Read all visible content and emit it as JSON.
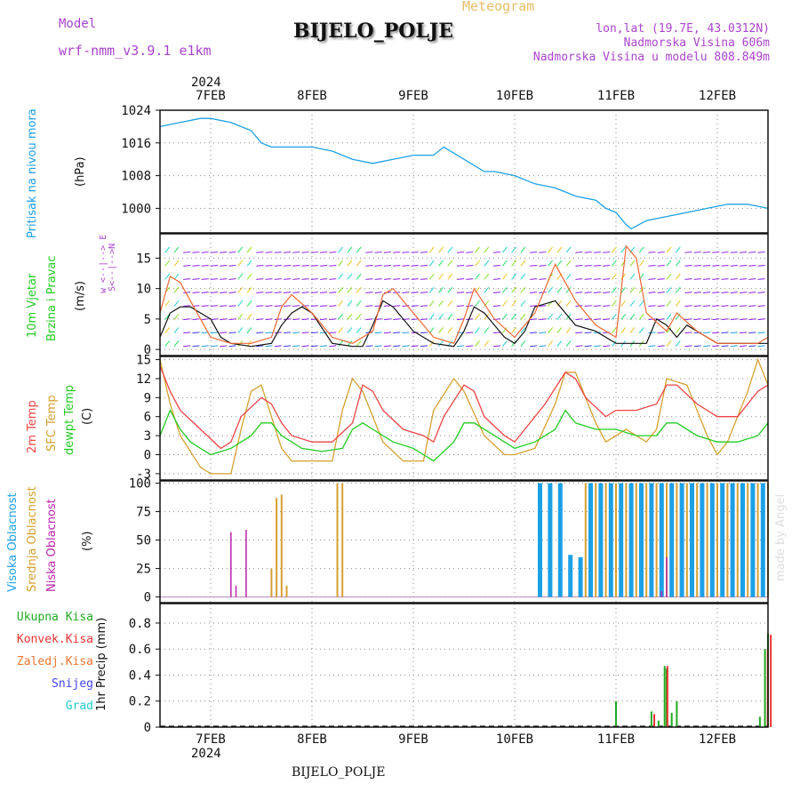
{
  "header": {
    "model_label": "Model",
    "model_name": "wrf-nmm_v3.9.1 e1km",
    "title": "BIJELO_POLJE",
    "product": "Meteogram",
    "lonlat": "lon,lat (19.7E, 43.0312N)",
    "elevation": "Nadmorska Visina 606m",
    "model_elevation": "Nadmorska Visina u modelu 808.849m",
    "year": "2024",
    "footer_station": "BIJELO_POLJE",
    "watermark": "made by Angel"
  },
  "colors": {
    "pressure": "#1ca0e6",
    "wind_label": "#22cc22",
    "temp2m": "#ee4444",
    "sfc": "#d6a030",
    "dewpt": "#22cc22",
    "high_cloud": "#1ca0e6",
    "mid_cloud": "#d6a030",
    "low_cloud": "#bb22aa",
    "total_precip": "#22aa22",
    "conv_precip": "#ee3333",
    "frozen_precip": "#ee7733",
    "snow": "#4444ee",
    "hail": "#22cccc",
    "meta": "#aa44cc"
  },
  "panel_labels": {
    "pressure": {
      "name": "Pritisak na nivou mora",
      "unit": "(hPa)"
    },
    "wind": {
      "line1": "10m Vjetar",
      "line2": "Brzina i Pravac",
      "unit": "(m/s)",
      "compass": "w <--|--> E",
      "compass2": "S<--|-->N"
    },
    "temp": {
      "t2m": "2m Temp",
      "sfc": "SFC Temp",
      "dew": "dewpt Temp",
      "unit": "(C)"
    },
    "cloud": {
      "high": "Visoka Oblacnost",
      "mid": "Srednja Oblacnost",
      "low": "Niska Oblacnost",
      "unit": "(%)"
    },
    "precip": {
      "unit": "1hr Precip (mm)",
      "legend": [
        "Ukupna Kisa",
        "Konvek.Kisa",
        "Zaledj.Kisa",
        "Snijeg",
        "Grad"
      ]
    }
  },
  "chart_data": [
    {
      "type": "line",
      "panel": "pressure",
      "x_ticks": [
        "7FEB",
        "8FEB",
        "9FEB",
        "10FEB",
        "11FEB",
        "12FEB"
      ],
      "x_days": [
        0,
        1,
        2,
        3,
        4,
        5
      ],
      "xlim": [
        -0.5,
        5.5
      ],
      "yticks": [
        1000,
        1008,
        1016,
        1024
      ],
      "ylim": [
        994,
        1024
      ],
      "grid": true,
      "series": [
        {
          "name": "Pritisak na nivou mora",
          "x": [
            -0.5,
            -0.3,
            -0.1,
            0.0,
            0.2,
            0.4,
            0.5,
            0.6,
            0.8,
            1.0,
            1.2,
            1.4,
            1.6,
            1.8,
            2.0,
            2.2,
            2.3,
            2.5,
            2.7,
            2.8,
            3.0,
            3.2,
            3.4,
            3.6,
            3.8,
            3.9,
            4.0,
            4.1,
            4.15,
            4.3,
            4.5,
            4.7,
            4.9,
            5.1,
            5.3,
            5.5
          ],
          "y": [
            1020,
            1021,
            1022,
            1022,
            1021,
            1019,
            1016,
            1015,
            1015,
            1015,
            1014,
            1012,
            1011,
            1012,
            1013,
            1013,
            1015,
            1012,
            1009,
            1009,
            1008,
            1006,
            1005,
            1003,
            1002,
            1000,
            999,
            996,
            995,
            997,
            998,
            999,
            1000,
            1001,
            1001,
            1000
          ]
        }
      ]
    },
    {
      "type": "line",
      "panel": "wind",
      "xlim": [
        -0.5,
        5.5
      ],
      "yticks": [
        0,
        5,
        10,
        15
      ],
      "ylim": [
        -1,
        19
      ],
      "grid": true,
      "series": [
        {
          "name": "speed",
          "x": [
            -0.5,
            -0.4,
            -0.3,
            -0.2,
            -0.1,
            0.0,
            0.1,
            0.2,
            0.4,
            0.6,
            0.7,
            0.8,
            0.9,
            1.0,
            1.2,
            1.4,
            1.5,
            1.6,
            1.7,
            1.8,
            1.9,
            2.0,
            2.2,
            2.4,
            2.5,
            2.6,
            2.7,
            2.8,
            2.9,
            3.0,
            3.1,
            3.2,
            3.4,
            3.5,
            3.6,
            3.8,
            4.0,
            4.1,
            4.2,
            4.3,
            4.4,
            4.5,
            4.6,
            4.7,
            4.8,
            5.0,
            5.2,
            5.4,
            5.5
          ],
          "y": [
            2,
            6,
            7,
            7,
            6,
            5,
            2,
            1,
            0.5,
            1,
            4,
            6,
            7,
            6,
            1,
            0.5,
            0.5,
            4,
            8,
            7,
            5,
            3,
            1,
            0.5,
            3,
            7,
            6,
            4,
            2,
            1,
            3,
            7,
            8,
            6,
            4,
            3,
            1,
            1,
            1,
            1,
            5,
            4,
            2,
            4,
            3,
            1,
            1,
            1,
            1
          ]
        },
        {
          "name": "gust",
          "x": [
            -0.5,
            -0.4,
            -0.3,
            -0.2,
            -0.1,
            0.0,
            0.2,
            0.4,
            0.6,
            0.7,
            0.8,
            1.0,
            1.2,
            1.4,
            1.6,
            1.7,
            1.8,
            2.0,
            2.2,
            2.4,
            2.5,
            2.6,
            2.8,
            3.0,
            3.2,
            3.4,
            3.6,
            3.8,
            4.0,
            4.1,
            4.2,
            4.3,
            4.5,
            4.6,
            4.8,
            5.0,
            5.2,
            5.4,
            5.5
          ],
          "y": [
            6,
            12,
            11,
            8,
            5,
            2,
            1,
            1,
            2,
            7,
            9,
            6,
            2,
            1,
            3,
            9,
            10,
            6,
            2,
            1,
            5,
            10,
            5,
            2,
            6,
            14,
            8,
            4,
            2,
            17,
            15,
            6,
            3,
            6,
            3,
            1,
            1,
            1,
            2
          ]
        }
      ]
    },
    {
      "type": "line",
      "panel": "temperature",
      "xlim": [
        -0.5,
        5.5
      ],
      "yticks": [
        -3,
        0,
        3,
        6,
        9,
        12,
        15
      ],
      "ylim": [
        -4,
        15.5
      ],
      "grid": true,
      "series": [
        {
          "name": "2m Temp",
          "x": [
            -0.5,
            -0.4,
            -0.3,
            -0.1,
            0.1,
            0.2,
            0.3,
            0.5,
            0.6,
            0.7,
            0.8,
            1.0,
            1.2,
            1.4,
            1.5,
            1.6,
            1.7,
            1.9,
            2.1,
            2.2,
            2.3,
            2.5,
            2.6,
            2.7,
            2.9,
            3.0,
            3.1,
            3.3,
            3.5,
            3.6,
            3.7,
            3.9,
            4.0,
            4.2,
            4.4,
            4.5,
            4.6,
            4.8,
            5.0,
            5.2,
            5.4,
            5.5
          ],
          "y": [
            14,
            10,
            7,
            4,
            1,
            2,
            6,
            9,
            8,
            5,
            3,
            2,
            2,
            5,
            11,
            10,
            7,
            4,
            3,
            2,
            6,
            11,
            10,
            6,
            3,
            2,
            4,
            8,
            13,
            12,
            9,
            6,
            7,
            7,
            8,
            11,
            11,
            8,
            6,
            6,
            10,
            11
          ]
        },
        {
          "name": "SFC Temp",
          "x": [
            -0.5,
            -0.4,
            -0.3,
            -0.1,
            0.0,
            0.2,
            0.3,
            0.4,
            0.5,
            0.6,
            0.7,
            0.8,
            1.0,
            1.2,
            1.3,
            1.4,
            1.5,
            1.7,
            1.9,
            2.1,
            2.2,
            2.4,
            2.5,
            2.7,
            2.9,
            3.0,
            3.2,
            3.4,
            3.5,
            3.6,
            3.8,
            3.9,
            4.1,
            4.3,
            4.4,
            4.5,
            4.7,
            4.9,
            5.0,
            5.1,
            5.3,
            5.4,
            5.5
          ],
          "y": [
            15,
            8,
            3,
            -2,
            -3,
            -3,
            4,
            10,
            11,
            6,
            1,
            -1,
            -1,
            -1,
            7,
            12,
            10,
            2,
            -1,
            -1,
            7,
            12,
            10,
            3,
            0,
            0,
            1,
            8,
            13,
            13,
            5,
            2,
            4,
            2,
            4,
            12,
            11,
            3,
            0,
            2,
            10,
            15,
            11
          ]
        },
        {
          "name": "dewpt Temp",
          "x": [
            -0.5,
            -0.4,
            -0.3,
            -0.2,
            -0.1,
            0.0,
            0.2,
            0.4,
            0.5,
            0.6,
            0.7,
            0.9,
            1.1,
            1.3,
            1.4,
            1.5,
            1.6,
            1.8,
            2.0,
            2.2,
            2.4,
            2.5,
            2.6,
            2.8,
            3.0,
            3.2,
            3.4,
            3.5,
            3.6,
            3.8,
            4.0,
            4.2,
            4.4,
            4.5,
            4.6,
            4.8,
            5.0,
            5.2,
            5.4,
            5.5
          ],
          "y": [
            3,
            7,
            4,
            2,
            1,
            0,
            1,
            3,
            5,
            5,
            3,
            1,
            0.5,
            1,
            4,
            5,
            4,
            2,
            1,
            -1,
            2,
            5,
            5,
            3,
            1,
            2,
            4,
            7,
            5,
            4,
            4,
            3,
            3,
            5,
            5,
            3,
            2,
            2,
            3,
            5
          ]
        }
      ]
    },
    {
      "type": "bar",
      "panel": "cloud",
      "xlim": [
        -0.5,
        5.5
      ],
      "yticks": [
        0,
        25,
        50,
        75,
        100
      ],
      "ylim": [
        -5,
        102
      ],
      "grid": true,
      "series": [
        {
          "name": "Visoka Oblacnost",
          "x": [
            3.25,
            3.35,
            3.45,
            3.55,
            3.65,
            3.75,
            3.85,
            3.95,
            4.05,
            4.15,
            4.25,
            4.35,
            4.45,
            4.55,
            4.65,
            4.75,
            4.85,
            4.95,
            5.05,
            5.15,
            5.25,
            5.35,
            5.45
          ],
          "y": [
            100,
            100,
            100,
            37,
            35,
            100,
            100,
            100,
            100,
            100,
            100,
            100,
            100,
            100,
            100,
            100,
            100,
            100,
            100,
            100,
            100,
            100,
            100
          ]
        },
        {
          "name": "Srednja Oblacnost",
          "x": [
            0.6,
            0.65,
            0.7,
            0.75,
            1.25,
            1.3,
            3.7,
            3.8,
            3.9,
            4.0,
            4.1,
            4.2,
            4.3,
            4.4,
            4.5,
            4.6,
            4.7,
            4.8,
            4.9,
            5.0,
            5.1,
            5.2,
            5.3,
            5.4,
            5.5
          ],
          "y": [
            25,
            87,
            90,
            10,
            100,
            100,
            100,
            100,
            100,
            100,
            100,
            100,
            100,
            100,
            100,
            100,
            100,
            100,
            100,
            100,
            100,
            100,
            100,
            100,
            100
          ]
        },
        {
          "name": "Niska Oblacnost",
          "x": [
            0.2,
            0.25,
            0.35,
            4.45,
            4.5
          ],
          "y": [
            57,
            10,
            59,
            5,
            35
          ]
        }
      ]
    },
    {
      "type": "bar",
      "panel": "precipitation",
      "xlim": [
        -0.5,
        5.5
      ],
      "yticks": [
        0,
        0.2,
        0.4,
        0.6,
        0.8
      ],
      "ylim": [
        0,
        0.95
      ],
      "grid": true,
      "series": [
        {
          "name": "Ukupna Kisa",
          "x": [
            4.0,
            4.35,
            4.42,
            4.48,
            4.5,
            4.55,
            4.6,
            5.42,
            5.47,
            5.5
          ],
          "y": [
            0.2,
            0.12,
            0.05,
            0.47,
            0.45,
            0.11,
            0.2,
            0.08,
            0.6,
            0.72
          ]
        },
        {
          "name": "Konvek.Kisa",
          "x": [
            4.36,
            4.49,
            5.48,
            5.51
          ],
          "y": [
            0.1,
            0.47,
            0.6,
            0.71
          ]
        }
      ]
    }
  ]
}
